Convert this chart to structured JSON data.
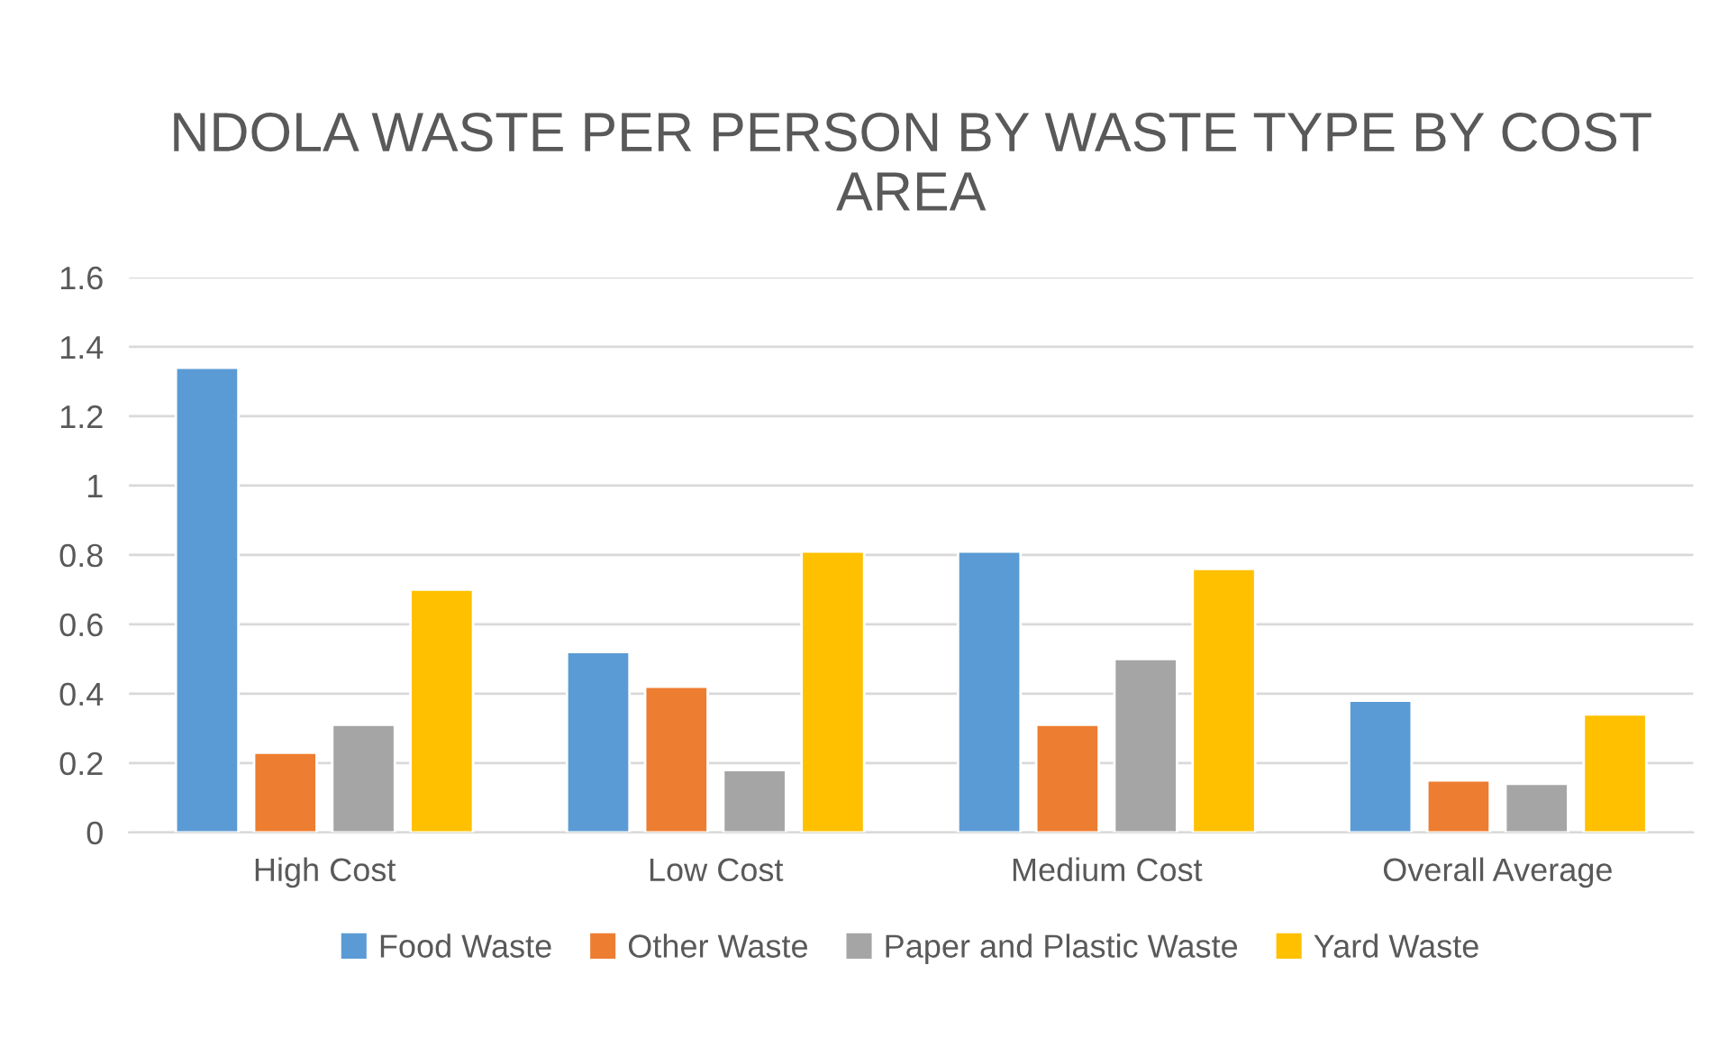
{
  "chart_data": {
    "type": "bar",
    "title": "NDOLA WASTE PER PERSON BY WASTE TYPE BY COST AREA",
    "categories": [
      "High Cost",
      "Low Cost",
      "Medium Cost",
      "Overall Average"
    ],
    "series": [
      {
        "name": "Food Waste",
        "color": "#5b9bd5",
        "values": [
          1.34,
          0.52,
          0.81,
          0.38
        ]
      },
      {
        "name": "Other Waste",
        "color": "#ed7d31",
        "values": [
          0.23,
          0.42,
          0.31,
          0.15
        ]
      },
      {
        "name": "Paper and Plastic Waste",
        "color": "#a5a5a5",
        "values": [
          0.31,
          0.18,
          0.5,
          0.14
        ]
      },
      {
        "name": "Yard Waste",
        "color": "#ffc000",
        "values": [
          0.7,
          0.81,
          0.76,
          0.34
        ]
      }
    ],
    "ylim": [
      0,
      1.6
    ],
    "yticks": [
      0,
      0.2,
      0.4,
      0.6,
      0.8,
      1,
      1.2,
      1.4,
      1.6
    ],
    "grid": "y",
    "legend": "bottom"
  }
}
